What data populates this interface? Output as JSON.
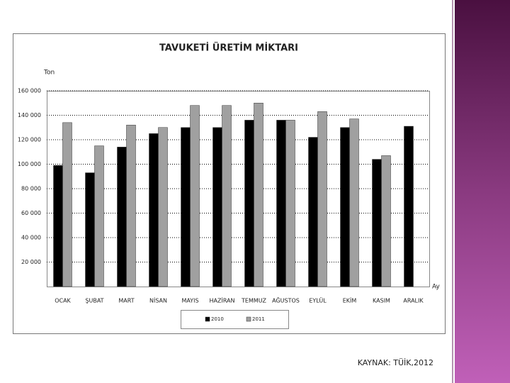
{
  "chart_data": {
    "type": "bar",
    "title": "TAVUKETİ ÜRETİM MİKTARI",
    "y_label": "Ton",
    "x_label": "Ay",
    "categories": [
      "OCAK",
      "ŞUBAT",
      "MART",
      "NİSAN",
      "MAYIS",
      "HAZİRAN",
      "TEMMUZ",
      "AĞUSTOS",
      "EYLÜL",
      "EKİM",
      "KASIM",
      "ARALIK"
    ],
    "series": [
      {
        "name": "2010",
        "color": "#000000",
        "values": [
          99000,
          93000,
          114000,
          125000,
          130000,
          130000,
          136000,
          136000,
          122000,
          130000,
          104000,
          131000
        ]
      },
      {
        "name": "2011",
        "color": "#a0a0a0",
        "values": [
          134000,
          115000,
          132000,
          130000,
          148000,
          148000,
          150000,
          136000,
          143000,
          137000,
          107000,
          null
        ]
      }
    ],
    "ylim": [
      0,
      160000
    ],
    "yticks": [
      {
        "value": 20000,
        "label": "20 000"
      },
      {
        "value": 40000,
        "label": "40 000"
      },
      {
        "value": 60000,
        "label": "60 000"
      },
      {
        "value": 80000,
        "label": "80 000"
      },
      {
        "value": 100000,
        "label": "100 000"
      },
      {
        "value": 120000,
        "label": "120 000"
      },
      {
        "value": 140000,
        "label": "140 000"
      },
      {
        "value": 160000,
        "label": "160 000"
      }
    ],
    "grid": true,
    "legend": "bottom"
  },
  "source": "KAYNAK:  TÜİK,2012"
}
